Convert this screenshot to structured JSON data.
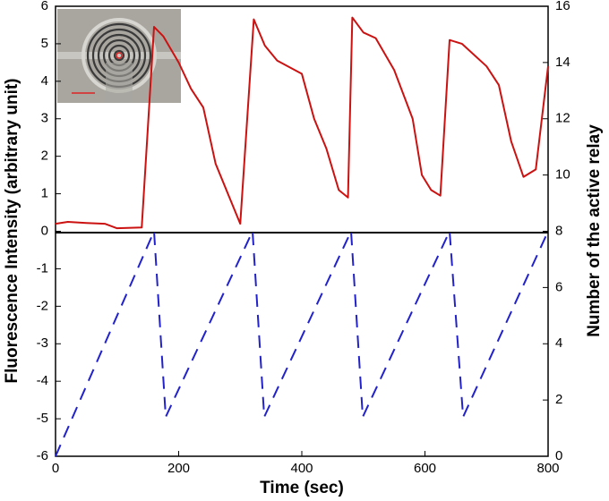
{
  "chart_data": {
    "type": "line",
    "x_label": "Time (sec)",
    "y_label": "Fluorescence Intensity (arbitrary unit)",
    "y2_label": "Number of the active relay",
    "xlim": [
      0,
      800
    ],
    "xticks": [
      0,
      200,
      400,
      600,
      800
    ],
    "ylim": [
      -6,
      6
    ],
    "yticks": [
      -6,
      -5,
      -4,
      -3,
      -2,
      -1,
      0,
      1,
      2,
      3,
      4,
      5,
      6
    ],
    "y2lim": [
      0,
      16
    ],
    "y2ticks": [
      0,
      2,
      4,
      6,
      8,
      10,
      12,
      14,
      16
    ],
    "series": [
      {
        "color": "#cc1111",
        "style": "solid",
        "x": [
          0,
          20,
          50,
          80,
          100,
          140,
          160,
          175,
          200,
          220,
          240,
          260,
          300,
          322,
          340,
          360,
          400,
          420,
          440,
          460,
          475,
          482,
          500,
          520,
          550,
          580,
          595,
          610,
          625,
          640,
          660,
          700,
          720,
          740,
          760,
          780,
          800
        ],
        "values": [
          0.2,
          0.25,
          0.22,
          0.2,
          0.08,
          0.1,
          5.45,
          5.2,
          4.5,
          3.8,
          3.3,
          1.8,
          0.2,
          5.65,
          4.95,
          4.55,
          4.2,
          3.0,
          2.2,
          1.1,
          0.9,
          5.7,
          5.3,
          5.15,
          4.3,
          3.0,
          1.5,
          1.1,
          0.95,
          5.1,
          5.0,
          4.4,
          3.9,
          2.4,
          1.45,
          1.65,
          4.4
        ]
      },
      {
        "color": "#2222cc",
        "style": "dashed",
        "axis": "y2",
        "x": [
          0,
          160,
          179,
          320,
          339,
          480,
          499,
          640,
          662,
          800
        ],
        "values": [
          0,
          8,
          1.4,
          8,
          1.4,
          8,
          1.4,
          8,
          1.4,
          8
        ]
      }
    ]
  }
}
